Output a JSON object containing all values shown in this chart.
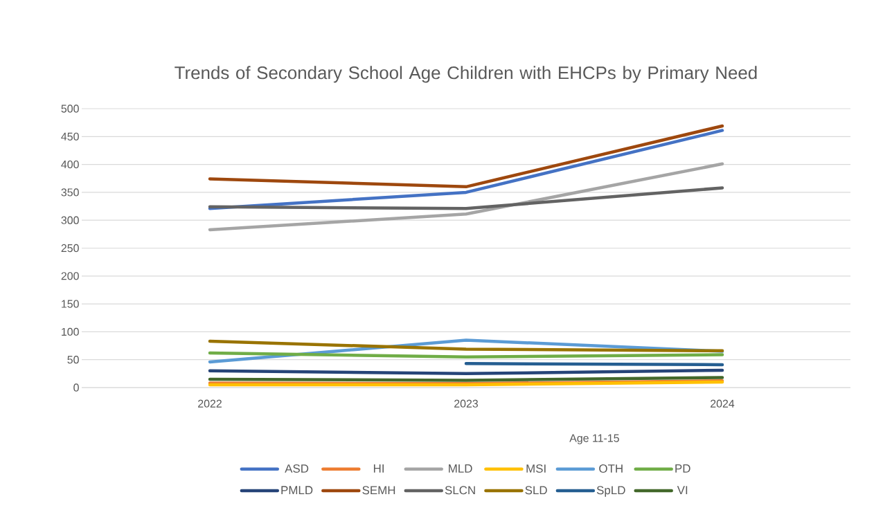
{
  "chart_data": {
    "type": "line",
    "title": "Trends of Secondary School Age Children with EHCPs by Primary Need",
    "xlabel": "Age 11-15",
    "categories": [
      "2022",
      "2023",
      "2024"
    ],
    "series": [
      {
        "name": "ASD",
        "color": "#4472c4",
        "values": [
          321,
          350,
          461
        ]
      },
      {
        "name": "HI",
        "color": "#ed7d31",
        "values": [
          8,
          7,
          12
        ]
      },
      {
        "name": "MLD",
        "color": "#a5a5a5",
        "values": [
          283,
          311,
          401
        ]
      },
      {
        "name": "MSI",
        "color": "#ffc000",
        "values": [
          5,
          5,
          10
        ]
      },
      {
        "name": "OTH",
        "color": "#5b9bd5",
        "values": [
          46,
          85,
          65
        ]
      },
      {
        "name": "PD",
        "color": "#70ad47",
        "values": [
          62,
          55,
          59
        ]
      },
      {
        "name": "PMLD",
        "color": "#264478",
        "values": [
          30,
          25,
          31
        ]
      },
      {
        "name": "SEMH",
        "color": "#9e480e",
        "values": [
          374,
          360,
          469
        ]
      },
      {
        "name": "SLCN",
        "color": "#636363",
        "values": [
          324,
          321,
          358
        ]
      },
      {
        "name": "SLD",
        "color": "#997300",
        "values": [
          83,
          69,
          66
        ]
      },
      {
        "name": "SpLD",
        "color": "#255e91",
        "values": [
          null,
          43,
          41
        ]
      },
      {
        "name": "VI",
        "color": "#43682b",
        "values": [
          15,
          13,
          18
        ]
      }
    ],
    "ylim": [
      0,
      500
    ],
    "yticks": [
      0,
      50,
      100,
      150,
      200,
      250,
      300,
      350,
      400,
      450,
      500
    ],
    "grid": "y",
    "legend": "bottom",
    "marker": "none",
    "line_style": "solid"
  }
}
